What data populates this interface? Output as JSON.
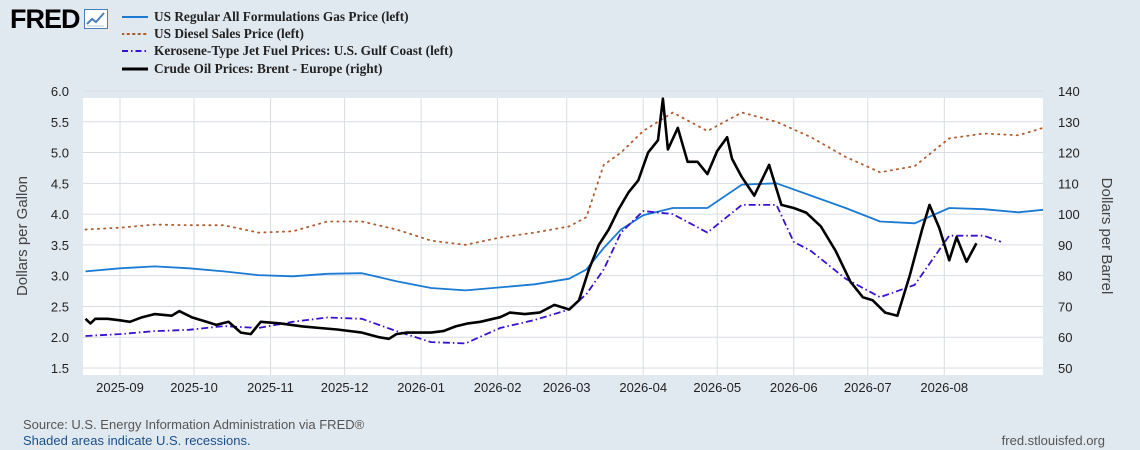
{
  "logo": {
    "text": "FRED",
    "icon": "line-chart-icon"
  },
  "footer": {
    "source": "Source: U.S. Energy Information Administration via FRED®",
    "recession_note": "Shaded areas indicate U.S. recessions.",
    "site": "fred.stlouisfed.org"
  },
  "colors": {
    "background": "#e1e9f0",
    "plot_bg": "#ffffff",
    "grid": "#d8dde3",
    "gas": "#1a7ad4",
    "diesel": "#b05a2a",
    "jet": "#3a10d0",
    "brent": "#000000"
  },
  "chart_data": {
    "type": "line",
    "xlabel": "",
    "ylabel_left": "Dollars per Gallon",
    "ylabel_right": "Dollars per Barrel",
    "x_ticks": [
      "2025-09",
      "2025-10",
      "2025-11",
      "2025-12",
      "2026-01",
      "2026-02",
      "2026-03",
      "2026-04",
      "2026-05",
      "2026-06",
      "2026-07",
      "2026-08"
    ],
    "y_left_ticks": [
      "1.5",
      "2.0",
      "2.5",
      "3.0",
      "3.5",
      "4.0",
      "4.5",
      "5.0",
      "5.5",
      "6.0"
    ],
    "y_right_ticks": [
      "50",
      "60",
      "70",
      "80",
      "90",
      "100",
      "110",
      "120",
      "130",
      "140"
    ],
    "ylim_left": [
      1.5,
      6.0
    ],
    "ylim_right": [
      50,
      140
    ],
    "grid": true,
    "legend_placement": "top-left",
    "series": [
      {
        "name": "US Regular All Formulations Gas Price (left)",
        "axis": "left",
        "style": "solid",
        "points": [
          [
            "2025-08-18",
            3.07
          ],
          [
            "2025-09-01",
            3.12
          ],
          [
            "2025-09-15",
            3.15
          ],
          [
            "2025-09-29",
            3.12
          ],
          [
            "2025-10-13",
            3.07
          ],
          [
            "2025-10-27",
            3.01
          ],
          [
            "2025-11-10",
            2.99
          ],
          [
            "2025-11-24",
            3.03
          ],
          [
            "2025-12-08",
            3.04
          ],
          [
            "2025-12-22",
            2.91
          ],
          [
            "2026-01-05",
            2.8
          ],
          [
            "2026-01-19",
            2.76
          ],
          [
            "2026-02-02",
            2.81
          ],
          [
            "2026-02-16",
            2.86
          ],
          [
            "2026-03-02",
            2.95
          ],
          [
            "2026-03-09",
            3.1
          ],
          [
            "2026-03-16",
            3.45
          ],
          [
            "2026-03-23",
            3.75
          ],
          [
            "2026-04-01",
            3.98
          ],
          [
            "2026-04-13",
            4.1
          ],
          [
            "2026-04-27",
            4.1
          ],
          [
            "2026-05-11",
            4.48
          ],
          [
            "2026-05-25",
            4.5
          ],
          [
            "2026-06-08",
            4.3
          ],
          [
            "2026-06-22",
            4.1
          ],
          [
            "2026-07-06",
            3.88
          ],
          [
            "2026-07-20",
            3.85
          ],
          [
            "2026-08-03",
            4.1
          ],
          [
            "2026-08-17",
            4.08
          ],
          [
            "2026-08-31",
            4.03
          ],
          [
            "2026-09-10",
            4.07
          ]
        ]
      },
      {
        "name": "US Diesel Sales Price (left)",
        "axis": "left",
        "style": "dotted",
        "points": [
          [
            "2025-08-18",
            3.75
          ],
          [
            "2025-09-01",
            3.78
          ],
          [
            "2025-09-15",
            3.83
          ],
          [
            "2025-09-29",
            3.82
          ],
          [
            "2025-10-13",
            3.82
          ],
          [
            "2025-10-27",
            3.7
          ],
          [
            "2025-11-10",
            3.72
          ],
          [
            "2025-11-24",
            3.88
          ],
          [
            "2025-12-08",
            3.88
          ],
          [
            "2025-12-22",
            3.75
          ],
          [
            "2026-01-05",
            3.57
          ],
          [
            "2026-01-19",
            3.5
          ],
          [
            "2026-02-02",
            3.62
          ],
          [
            "2026-02-16",
            3.7
          ],
          [
            "2026-03-02",
            3.8
          ],
          [
            "2026-03-09",
            3.95
          ],
          [
            "2026-03-16",
            4.8
          ],
          [
            "2026-03-23",
            5.0
          ],
          [
            "2026-04-01",
            5.35
          ],
          [
            "2026-04-13",
            5.65
          ],
          [
            "2026-04-27",
            5.35
          ],
          [
            "2026-05-11",
            5.65
          ],
          [
            "2026-05-25",
            5.5
          ],
          [
            "2026-06-08",
            5.25
          ],
          [
            "2026-06-22",
            4.93
          ],
          [
            "2026-07-06",
            4.68
          ],
          [
            "2026-07-20",
            4.78
          ],
          [
            "2026-08-03",
            5.23
          ],
          [
            "2026-08-17",
            5.31
          ],
          [
            "2026-08-31",
            5.28
          ],
          [
            "2026-09-10",
            5.4
          ]
        ]
      },
      {
        "name": "Kerosene-Type Jet Fuel Prices: U.S. Gulf Coast (left)",
        "axis": "left",
        "style": "dash-dot",
        "points": [
          [
            "2025-08-18",
            2.02
          ],
          [
            "2025-09-01",
            2.05
          ],
          [
            "2025-09-15",
            2.1
          ],
          [
            "2025-09-29",
            2.12
          ],
          [
            "2025-10-13",
            2.18
          ],
          [
            "2025-10-27",
            2.15
          ],
          [
            "2025-11-10",
            2.25
          ],
          [
            "2025-11-24",
            2.32
          ],
          [
            "2025-12-08",
            2.3
          ],
          [
            "2025-12-22",
            2.1
          ],
          [
            "2026-01-05",
            1.92
          ],
          [
            "2026-01-19",
            1.9
          ],
          [
            "2026-02-02",
            2.15
          ],
          [
            "2026-02-16",
            2.28
          ],
          [
            "2026-03-02",
            2.45
          ],
          [
            "2026-03-09",
            2.7
          ],
          [
            "2026-03-16",
            3.1
          ],
          [
            "2026-03-23",
            3.7
          ],
          [
            "2026-04-01",
            4.05
          ],
          [
            "2026-04-13",
            4.0
          ],
          [
            "2026-04-27",
            3.7
          ],
          [
            "2026-05-11",
            4.15
          ],
          [
            "2026-05-25",
            4.15
          ],
          [
            "2026-06-01",
            3.55
          ],
          [
            "2026-06-08",
            3.4
          ],
          [
            "2026-06-22",
            2.95
          ],
          [
            "2026-07-06",
            2.65
          ],
          [
            "2026-07-20",
            2.85
          ],
          [
            "2026-08-03",
            3.65
          ],
          [
            "2026-08-17",
            3.65
          ],
          [
            "2026-08-24",
            3.55
          ]
        ]
      },
      {
        "name": "Crude Oil Prices: Brent - Europe (right)",
        "axis": "right",
        "style": "solid-thick",
        "points": [
          [
            "2025-08-18",
            66.0
          ],
          [
            "2025-08-20",
            64.5
          ],
          [
            "2025-08-22",
            66.0
          ],
          [
            "2025-08-27",
            66.0
          ],
          [
            "2025-09-01",
            65.5
          ],
          [
            "2025-09-05",
            65.0
          ],
          [
            "2025-09-10",
            66.5
          ],
          [
            "2025-09-15",
            67.5
          ],
          [
            "2025-09-22",
            67.0
          ],
          [
            "2025-09-25",
            68.5
          ],
          [
            "2025-09-30",
            66.5
          ],
          [
            "2025-10-06",
            65.0
          ],
          [
            "2025-10-10",
            64.0
          ],
          [
            "2025-10-15",
            65.0
          ],
          [
            "2025-10-20",
            61.5
          ],
          [
            "2025-10-24",
            61.0
          ],
          [
            "2025-10-28",
            65.0
          ],
          [
            "2025-11-05",
            64.5
          ],
          [
            "2025-11-14",
            63.5
          ],
          [
            "2025-11-21",
            63.0
          ],
          [
            "2025-11-28",
            62.5
          ],
          [
            "2025-12-08",
            61.5
          ],
          [
            "2025-12-15",
            60.0
          ],
          [
            "2025-12-19",
            59.5
          ],
          [
            "2025-12-22",
            61.0
          ],
          [
            "2025-12-26",
            61.5
          ],
          [
            "2026-01-05",
            61.5
          ],
          [
            "2026-01-10",
            62.0
          ],
          [
            "2026-01-15",
            63.5
          ],
          [
            "2026-01-20",
            64.5
          ],
          [
            "2026-01-25",
            65.0
          ],
          [
            "2026-02-02",
            66.5
          ],
          [
            "2026-02-06",
            68.0
          ],
          [
            "2026-02-12",
            67.5
          ],
          [
            "2026-02-18",
            68.0
          ],
          [
            "2026-02-24",
            70.5
          ],
          [
            "2026-03-02",
            69.0
          ],
          [
            "2026-03-06",
            72.0
          ],
          [
            "2026-03-10",
            82.0
          ],
          [
            "2026-03-14",
            90.0
          ],
          [
            "2026-03-18",
            95.0
          ],
          [
            "2026-03-22",
            101.5
          ],
          [
            "2026-03-26",
            107.0
          ],
          [
            "2026-03-30",
            111.0
          ],
          [
            "2026-04-03",
            120.0
          ],
          [
            "2026-04-07",
            124.0
          ],
          [
            "2026-04-09",
            137.5
          ],
          [
            "2026-04-11",
            121.0
          ],
          [
            "2026-04-15",
            128.0
          ],
          [
            "2026-04-19",
            117.0
          ],
          [
            "2026-04-23",
            117.0
          ],
          [
            "2026-04-27",
            113.0
          ],
          [
            "2026-05-01",
            120.5
          ],
          [
            "2026-05-05",
            125.0
          ],
          [
            "2026-05-07",
            118.0
          ],
          [
            "2026-05-11",
            112.0
          ],
          [
            "2026-05-16",
            106.0
          ],
          [
            "2026-05-22",
            116.0
          ],
          [
            "2026-05-27",
            103.0
          ],
          [
            "2026-06-01",
            102.0
          ],
          [
            "2026-06-06",
            100.5
          ],
          [
            "2026-06-12",
            96.0
          ],
          [
            "2026-06-18",
            88.0
          ],
          [
            "2026-06-24",
            78.0
          ],
          [
            "2026-06-29",
            73.0
          ],
          [
            "2026-07-03",
            72.0
          ],
          [
            "2026-07-08",
            68.0
          ],
          [
            "2026-07-13",
            67.0
          ],
          [
            "2026-07-18",
            80.0
          ],
          [
            "2026-07-23",
            95.0
          ],
          [
            "2026-07-26",
            103.0
          ],
          [
            "2026-07-30",
            95.5
          ],
          [
            "2026-08-03",
            85.0
          ],
          [
            "2026-08-06",
            92.5
          ],
          [
            "2026-08-10",
            84.5
          ],
          [
            "2026-08-14",
            90.5
          ]
        ]
      }
    ]
  }
}
